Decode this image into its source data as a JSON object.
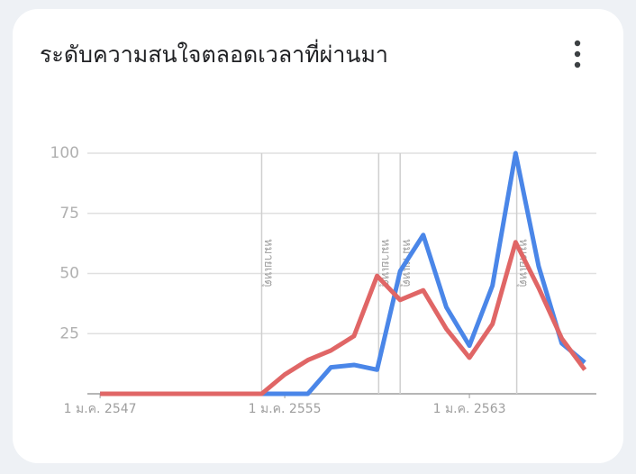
{
  "chart_data": {
    "type": "line",
    "title": "ระดับความสนใจตลอดเวลาที่ผ่านมา",
    "x": [
      2547,
      2548,
      2549,
      2550,
      2551,
      2552,
      2553,
      2554,
      2555,
      2556,
      2557,
      2558,
      2559,
      2560,
      2561,
      2562,
      2563,
      2564,
      2565,
      2566,
      2567,
      2568
    ],
    "series": [
      {
        "color": "#4a86e8",
        "values": [
          0,
          0,
          0,
          0,
          0,
          0,
          0,
          0,
          0,
          0,
          11,
          12,
          10,
          51,
          66,
          36,
          20,
          45,
          100,
          53,
          21,
          13
        ]
      },
      {
        "color": "#e06666",
        "values": [
          0,
          0,
          0,
          0,
          0,
          0,
          0,
          0,
          8,
          14,
          18,
          24,
          49,
          39,
          43,
          27,
          15,
          29,
          63,
          44,
          23,
          10
        ]
      }
    ],
    "xlim": [
      2546.45,
      2568.5
    ],
    "xticks": [
      {
        "value": 2547,
        "label": "1 ม.ค. 2547"
      },
      {
        "value": 2555,
        "label": "1 ม.ค. 2555"
      },
      {
        "value": 2563,
        "label": "1 ม.ค. 2563"
      }
    ],
    "ylim": [
      0,
      100
    ],
    "yticks": [
      25,
      50,
      75,
      100
    ],
    "grid": true,
    "annotations": [
      {
        "x": 2554,
        "label": "หมายเหตุ"
      },
      {
        "x": 2559.07,
        "label": "หมายเหตุ"
      },
      {
        "x": 2560,
        "label": "หมายเหตุ"
      },
      {
        "x": 2565.05,
        "label": "หมายเหตุ"
      }
    ]
  }
}
